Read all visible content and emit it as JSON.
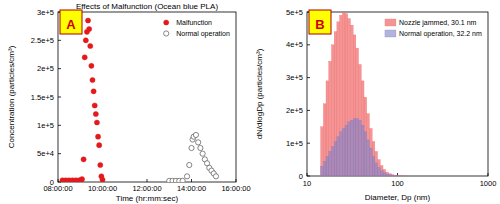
{
  "chart_data": [
    {
      "type": "scatter",
      "title": "Effects of Malfunction (Ocean blue PLA)",
      "x_label": "Time (hr:mm:sec)",
      "y_label": "Concentration (particles/cm³)",
      "annotations": [
        "A"
      ],
      "xlim": [
        8,
        16
      ],
      "xticks": [
        {
          "value": 8,
          "label": "08:00:00"
        },
        {
          "value": 10,
          "label": "10:00:00"
        },
        {
          "value": 12,
          "label": "12:00:00"
        },
        {
          "value": 14,
          "label": "14:00:00"
        },
        {
          "value": 16,
          "label": "16:00:00"
        }
      ],
      "ylim": [
        0,
        300000
      ],
      "yticks": [
        0,
        {
          "value": 50000,
          "label": "5e+4"
        },
        {
          "value": 100000,
          "label": "1e+5"
        },
        {
          "value": 150000,
          "label": "1.5e+5"
        },
        {
          "value": 200000,
          "label": "2e+5"
        },
        {
          "value": 250000,
          "label": "2.5e+5"
        },
        {
          "value": 300000,
          "label": "3e+5"
        }
      ],
      "grid": false,
      "legend": "upper right",
      "series": [
        {
          "name": "Malfunction",
          "color": "#e31a1c",
          "marker": "circle",
          "x": [
            8.2,
            8.35,
            8.5,
            8.65,
            8.8,
            8.95,
            9.0,
            9.08,
            9.15,
            9.2,
            9.25,
            9.3,
            9.35,
            9.4,
            9.45,
            9.5,
            9.55,
            9.6,
            9.65,
            9.7,
            9.75,
            9.8,
            9.85,
            9.9,
            9.95,
            10.0
          ],
          "values": [
            3000,
            3000,
            3000,
            3000,
            3000,
            3000,
            3000,
            5000,
            40000,
            220000,
            250000,
            265000,
            285000,
            270000,
            240000,
            205000,
            180000,
            160000,
            135000,
            120000,
            105000,
            80000,
            65000,
            30000,
            10000,
            4000
          ]
        },
        {
          "name": "Normal operation",
          "color": "#555555",
          "marker": "open_circle",
          "x": [
            13.0,
            13.15,
            13.3,
            13.45,
            13.6,
            13.8,
            13.9,
            14.0,
            14.05,
            14.1,
            14.2,
            14.3,
            14.4,
            14.5,
            14.6,
            14.7,
            14.8,
            14.9,
            15.0,
            15.1
          ],
          "values": [
            2000,
            2000,
            2000,
            2000,
            2000,
            10000,
            30000,
            60000,
            75000,
            80000,
            83000,
            70000,
            60000,
            50000,
            40000,
            33000,
            25000,
            20000,
            15000,
            10000
          ]
        }
      ]
    },
    {
      "type": "histogram",
      "x_label": "Diameter, Dp (nm)",
      "y_label": "dN/dlogDp (particles/cm³)",
      "annotations": [
        "B"
      ],
      "log": "x",
      "xlim": [
        10,
        1000
      ],
      "xticks": [
        10,
        100,
        1000
      ],
      "ylim": [
        0,
        500000
      ],
      "yticks": [
        0,
        {
          "value": 100000,
          "label": "1e+5"
        },
        {
          "value": 200000,
          "label": "2e+5"
        },
        {
          "value": 300000,
          "label": "3e+5"
        },
        {
          "value": 400000,
          "label": "4e+5"
        },
        {
          "value": 500000,
          "label": "5e+5"
        }
      ],
      "grid": false,
      "legend": "upper right",
      "bins": [
        14.13,
        15.14,
        16.22,
        17.38,
        18.62,
        19.95,
        21.38,
        22.91,
        24.55,
        26.3,
        28.18,
        30.2,
        32.36,
        34.67,
        37.15,
        39.81,
        42.66,
        45.71,
        48.98,
        52.48,
        56.23,
        60.26,
        64.57,
        69.18,
        74.13,
        79.43,
        85.11,
        91.2,
        97.72,
        104.7,
        112.2,
        120.2,
        128.8
      ],
      "series": [
        {
          "name": "Nozzle jammed, 30.1 nm",
          "color": "#f07070",
          "values": [
            150000,
            220000,
            290000,
            350000,
            400000,
            440000,
            470000,
            490000,
            500000,
            495000,
            480000,
            460000,
            430000,
            390000,
            340000,
            290000,
            240000,
            190000,
            145000,
            105000,
            75000,
            50000,
            32000,
            20000,
            12000,
            7000,
            4000,
            2000,
            1000,
            500,
            200,
            100
          ]
        },
        {
          "name": "Normal operation, 32.2 nm",
          "color": "#8080c8",
          "values": [
            30000,
            45000,
            60000,
            75000,
            90000,
            105000,
            120000,
            135000,
            145000,
            155000,
            165000,
            170000,
            175000,
            175000,
            170000,
            155000,
            135000,
            110000,
            85000,
            60000,
            40000,
            26000,
            16000,
            10000,
            6000,
            3500,
            2000,
            1000,
            500,
            250,
            100,
            50
          ]
        }
      ]
    }
  ]
}
